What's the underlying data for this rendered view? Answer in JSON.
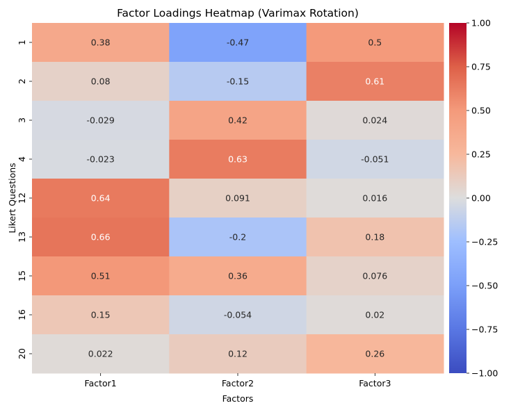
{
  "chart_data": {
    "type": "heatmap",
    "title": "Factor Loadings Heatmap (Varimax Rotation)",
    "xlabel": "Factors",
    "ylabel": "Likert Questions",
    "x_categories": [
      "Factor1",
      "Factor2",
      "Factor3"
    ],
    "y_categories": [
      "1",
      "2",
      "3",
      "4",
      "12",
      "13",
      "15",
      "16",
      "20"
    ],
    "values": [
      [
        0.38,
        -0.47,
        0.5
      ],
      [
        0.08,
        -0.15,
        0.61
      ],
      [
        -0.029,
        0.42,
        0.024
      ],
      [
        -0.023,
        0.63,
        -0.051
      ],
      [
        0.64,
        0.091,
        0.016
      ],
      [
        0.66,
        -0.2,
        0.18
      ],
      [
        0.51,
        0.36,
        0.076
      ],
      [
        0.15,
        -0.054,
        0.02
      ],
      [
        0.022,
        0.12,
        0.26
      ]
    ],
    "annotations": [
      [
        "0.38",
        "-0.47",
        "0.5"
      ],
      [
        "0.08",
        "-0.15",
        "0.61"
      ],
      [
        "-0.029",
        "0.42",
        "0.024"
      ],
      [
        "-0.023",
        "0.63",
        "-0.051"
      ],
      [
        "0.64",
        "0.091",
        "0.016"
      ],
      [
        "0.66",
        "-0.2",
        "0.18"
      ],
      [
        "0.51",
        "0.36",
        "0.076"
      ],
      [
        "0.15",
        "-0.054",
        "0.02"
      ],
      [
        "0.022",
        "0.12",
        "0.26"
      ]
    ],
    "colormap": "coolwarm",
    "vmin": -1.0,
    "vmax": 1.0,
    "colorbar_ticks": [
      -1.0,
      -0.75,
      -0.5,
      -0.25,
      0.0,
      0.25,
      0.5,
      0.75,
      1.0
    ],
    "colorbar_tick_labels": [
      "−1.00",
      "−0.75",
      "−0.50",
      "−0.25",
      "0.00",
      "0.25",
      "0.50",
      "0.75",
      "1.00"
    ],
    "grid": false,
    "legend": "colorbar-right"
  }
}
